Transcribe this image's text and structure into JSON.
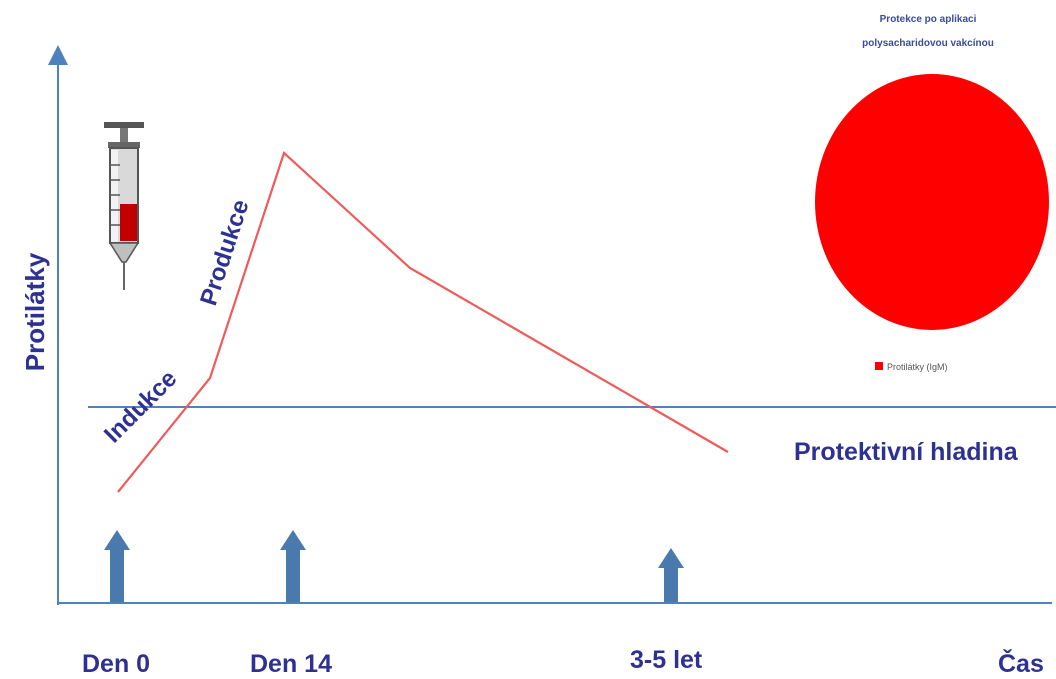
{
  "colors": {
    "axis": "#4f81bd",
    "curve": "#f05a5a",
    "text_dark_blue": "#2e3192",
    "arrow": "#4a7aad",
    "circle": "#ff0000"
  },
  "axes": {
    "y_label": "Protilátky",
    "x_end_label": "Čas"
  },
  "phase_labels": {
    "induction": "Indukce",
    "production": "Produkce"
  },
  "protective_level_label": "Protektivní hladina",
  "time_markers": [
    {
      "label": "Den 0"
    },
    {
      "label": "Den 14"
    },
    {
      "label": "3-5 let"
    }
  ],
  "legend": {
    "title_line1": "Protekce po aplikaci",
    "title_line2": "polysacharidovou vakcínou",
    "item": "Protilátky (IgM)"
  },
  "icons": [
    "syringe-icon",
    "up-arrow-icon"
  ]
}
